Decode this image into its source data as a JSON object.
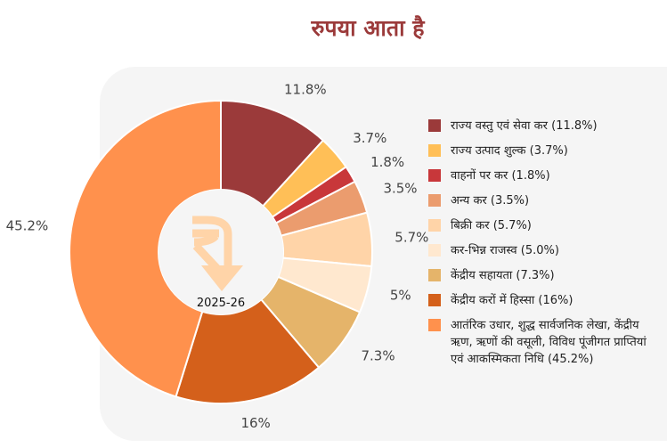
{
  "title": "रुपया आता है",
  "center_label": "2025-26",
  "center_icon": "rupee-down-arrow-icon",
  "chart_data": {
    "type": "pie",
    "title": "रुपया आता है",
    "legend_position": "right",
    "slices": [
      {
        "label": "राज्य वस्तु एवं सेवा कर  (11.8%)",
        "value": 11.8,
        "data_label": "11.8%",
        "color": "#9b3a3a"
      },
      {
        "label": "राज्य उत्पाद शुल्क (3.7%)",
        "value": 3.7,
        "data_label": "3.7%",
        "color": "#ffbf57"
      },
      {
        "label": "वाहनों पर कर (1.8%)",
        "value": 1.8,
        "data_label": "1.8%",
        "color": "#c8373a"
      },
      {
        "label": "अन्य कर (3.5%)",
        "value": 3.5,
        "data_label": "3.5%",
        "color": "#eb9c6e"
      },
      {
        "label": "बिक्री कर (5.7%)",
        "value": 5.7,
        "data_label": "5.7%",
        "color": "#ffd4a8"
      },
      {
        "label": "कर-भिन्न राजस्व (5.0%)",
        "value": 5.0,
        "data_label": "5%",
        "color": "#ffe8cf"
      },
      {
        "label": "केंद्रीय सहायता (7.3%)",
        "value": 7.3,
        "data_label": "7.3%",
        "color": "#e5b46a"
      },
      {
        "label": "केंद्रीय करों में हिस्सा (16%)",
        "value": 16,
        "data_label": "16%",
        "color": "#d4601b"
      },
      {
        "label": "आतंरिक उधार, शुद्ध सार्वजनिक लेखा, केंद्रीय ऋण, ऋणों की वसूली, विविध पूंजीगत प्राप्तियां एवं आकस्मिकता निधि (45.2%)",
        "value": 45.2,
        "data_label": "45.2%",
        "color": "#ff914d"
      }
    ]
  }
}
